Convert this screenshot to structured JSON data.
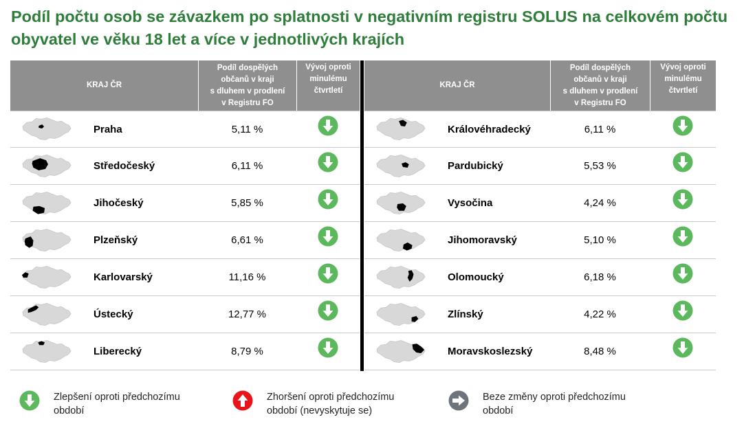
{
  "title": "Podíl počtu osob se závazkem po splatnosti v negativním registru SOLUS na celkovém počtu obyvatel ve věku 18 let a více v jednotlivých krajích",
  "headers": {
    "region": "KRAJ ČR",
    "share_lines": [
      "Podíl dospělých",
      "občanů v kraji",
      "s dluhem v prodlení",
      "v Registru FO"
    ],
    "trend_lines": [
      "Vývoj oproti",
      "minulému",
      "čtvrtletí"
    ]
  },
  "colors": {
    "title": "#2e7d3a",
    "header_bg": "#8f8f8f",
    "arrow_down": "#5cb85c",
    "arrow_up": "#e8161b",
    "arrow_same": "#6d747c",
    "map_fill": "#d8d8d8"
  },
  "chart_data": {
    "type": "table",
    "unit": "%",
    "rows": [
      {
        "region": "Praha",
        "value": "5,11 %",
        "trend": "down"
      },
      {
        "region": "Středočeský",
        "value": "6,11 %",
        "trend": "down"
      },
      {
        "region": "Jihočeský",
        "value": "5,85 %",
        "trend": "down"
      },
      {
        "region": "Plzeňský",
        "value": "6,61 %",
        "trend": "down"
      },
      {
        "region": "Karlovarský",
        "value": "11,16 %",
        "trend": "down"
      },
      {
        "region": "Ústecký",
        "value": "12,77 %",
        "trend": "down"
      },
      {
        "region": "Liberecký",
        "value": "8,79 %",
        "trend": "down"
      },
      {
        "region": "Královéhradecký",
        "value": "6,11 %",
        "trend": "down"
      },
      {
        "region": "Pardubický",
        "value": "5,53 %",
        "trend": "down"
      },
      {
        "region": "Vysočina",
        "value": "4,24 %",
        "trend": "down"
      },
      {
        "region": "Jihomoravský",
        "value": "5,10 %",
        "trend": "down"
      },
      {
        "region": "Olomoucký",
        "value": "6,18 %",
        "trend": "down"
      },
      {
        "region": "Zlínský",
        "value": "4,22 %",
        "trend": "down"
      },
      {
        "region": "Moravskoslezský",
        "value": "8,48 %",
        "trend": "down"
      }
    ]
  },
  "legend": {
    "better": [
      "Zlepšení oproti předchozímu",
      "období"
    ],
    "worse": [
      "Zhoršení oproti předchozímu",
      "období (nevyskytuje se)"
    ],
    "same": [
      "Beze změny oproti předchozímu",
      "období"
    ]
  }
}
